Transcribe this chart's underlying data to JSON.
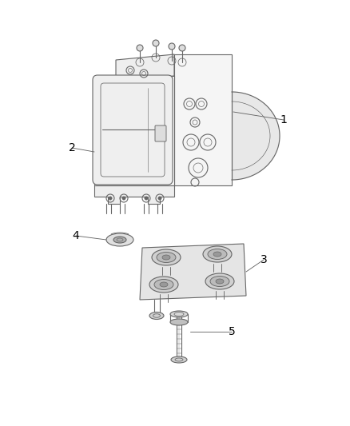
{
  "bg_color": "#ffffff",
  "lc": "#666666",
  "lc2": "#888888",
  "fig_width": 4.38,
  "fig_height": 5.33,
  "dpi": 100,
  "label_fontsize": 10
}
